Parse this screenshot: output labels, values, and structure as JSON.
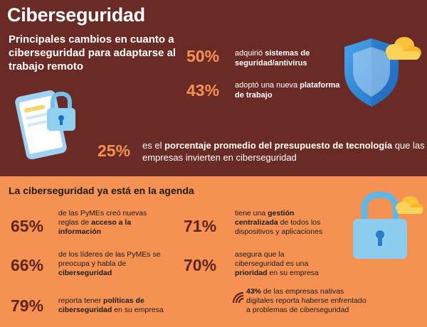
{
  "title": "Ciberseguridad",
  "subtitle": "Principales cambios en cuanto a ciberseguridad para adaptarse al trabajo remoto",
  "stats_top": [
    {
      "pct": "50%",
      "pre": "adquirió ",
      "bold": "sistemas de seguridad/antivirus",
      "post": ""
    },
    {
      "pct": "43%",
      "pre": "adoptó una nueva ",
      "bold": "plataforma de trabajo",
      "post": ""
    }
  ],
  "stat_25": {
    "pct": "25%",
    "pre": "es el ",
    "bold": "porcentaje promedio del presupuesto de tecnología",
    "post": " que las empresas invierten en ciberseguridad"
  },
  "agenda_title": "La ciberseguridad ya está en la agenda",
  "stats_bottom": [
    {
      "pct": "65%",
      "pre": "de las PyMEs creó nuevas reglas de ",
      "bold": "acceso a la información",
      "post": ""
    },
    {
      "pct": "71%",
      "pre": "tiene una ",
      "bold": "gestión centralizada",
      "post": " de todos los dispositivos y aplicaciones"
    },
    {
      "pct": "66%",
      "pre": "de los líderes de las PyMEs se preocupa y habla de ",
      "bold": "ciberseguridad",
      "post": ""
    },
    {
      "pct": "70%",
      "pre": "asegura que la ciberseguridad es una ",
      "bold": "prioridad",
      "post": " en su empresa"
    },
    {
      "pct": "79%",
      "pre": "reporta tener ",
      "bold": "políticas de ciberseguridad",
      "post": " en su empresa"
    }
  ],
  "note_43": {
    "bold": "43%",
    "text": " de las empresas nativas digitales reporta haberse enfrentado a problemas de ciberseguridad"
  },
  "colors": {
    "dark": "#6a2a25",
    "orange": "#f59152",
    "pct_dark": "#5e2520"
  },
  "icons": [
    "shield-icon",
    "cloud-icon",
    "phone-icon",
    "padlock-icon",
    "wifi-icon"
  ]
}
